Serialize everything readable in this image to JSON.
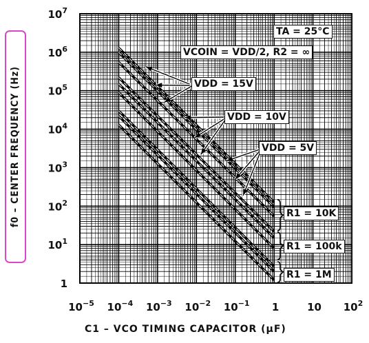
{
  "chart_data": {
    "type": "line",
    "title": "",
    "xlabel": "C1 – VCO TIMING CAPACITOR (µF)",
    "ylabel": "f0 – CENTER FREQUENCY (Hz)",
    "xscale": "log",
    "yscale": "log",
    "xlim": [
      1e-05,
      100
    ],
    "ylim": [
      1,
      10000000
    ],
    "grid": true,
    "x_tick_labels": [
      "10^-5",
      "10^-4",
      "10^-3",
      "10^-2",
      "10^-1",
      "1",
      "10",
      "10^2"
    ],
    "y_tick_labels": [
      "1",
      "10^1",
      "10^2",
      "10^3",
      "10^4",
      "10^5",
      "10^6",
      "10^7"
    ],
    "annotations": {
      "conditions": "TA = 25°C",
      "vco_in": "VCOIN = VDD/2, R2 = ∞",
      "vdd_15": "VDD = 15V",
      "vdd_10": "VDD = 10V",
      "vdd_5": "VDD = 5V",
      "r1_10k": "R1 = 10K",
      "r1_100k": "R1 = 100k",
      "r1_1m": "R1 = 1M"
    },
    "series": [
      {
        "name": "R1 = 10K, VDD = 15V",
        "x": [
          0.0001,
          1
        ],
        "y": [
          1300000,
          125
        ]
      },
      {
        "name": "R1 = 10K, VDD = 10V",
        "x": [
          0.0001,
          1
        ],
        "y": [
          1000000,
          95
        ]
      },
      {
        "name": "R1 = 10K, VDD = 5V",
        "x": [
          0.0001,
          1
        ],
        "y": [
          550000,
          55
        ]
      },
      {
        "name": "R1 = 100k, VDD = 15V",
        "x": [
          0.0001,
          1
        ],
        "y": [
          220000,
          22
        ]
      },
      {
        "name": "R1 = 100k, VDD = 10V",
        "x": [
          0.0001,
          1
        ],
        "y": [
          150000,
          15
        ]
      },
      {
        "name": "R1 = 100k, VDD = 5V",
        "x": [
          0.0001,
          1
        ],
        "y": [
          90000,
          8
        ]
      },
      {
        "name": "R1 = 1M, VDD = 15V",
        "x": [
          0.0001,
          1
        ],
        "y": [
          30000,
          2.7
        ]
      },
      {
        "name": "R1 = 1M, VDD = 10V",
        "x": [
          0.0001,
          1
        ],
        "y": [
          22000,
          2
        ]
      },
      {
        "name": "R1 = 1M, VDD = 5V",
        "x": [
          0.0001,
          1
        ],
        "y": [
          13000,
          1.2
        ]
      }
    ]
  }
}
